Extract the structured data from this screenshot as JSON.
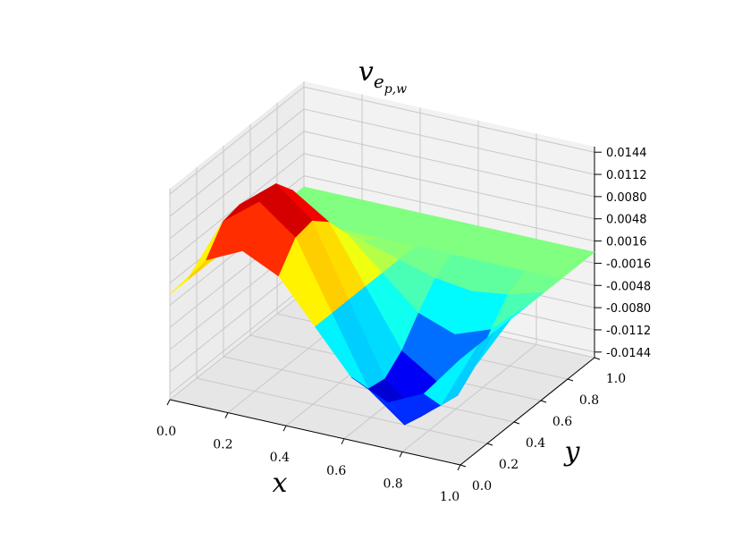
{
  "chart_data": {
    "type": "surface3d",
    "title": {
      "base": "v",
      "sub": "e",
      "subsub": "p,w"
    },
    "x_label": "x",
    "y_label": "y",
    "colormap": "jet",
    "x": [
      0,
      0.125,
      0.25,
      0.375,
      0.5,
      0.625,
      0.75,
      0.875,
      1
    ],
    "y": [
      0,
      0.125,
      0.25,
      0.375,
      0.5,
      0.625,
      0.75,
      0.875,
      1
    ],
    "z": [
      [
        0,
        0.0061,
        0.0086,
        0.0061,
        0,
        -0.0061,
        -0.0086,
        -0.0061,
        0
      ],
      [
        0,
        0.0097,
        0.0137,
        0.0097,
        0,
        -0.0097,
        -0.0137,
        -0.0097,
        0
      ],
      [
        0,
        0.0102,
        0.0144,
        0.0102,
        0,
        -0.0102,
        -0.0144,
        -0.0102,
        0
      ],
      [
        0,
        0.0081,
        0.0115,
        0.0081,
        0,
        -0.0081,
        -0.0115,
        -0.0081,
        0
      ],
      [
        0,
        0.0046,
        0.0065,
        0.0046,
        0,
        -0.0046,
        -0.0065,
        -0.0046,
        0
      ],
      [
        0,
        0.0015,
        0.0022,
        0.0015,
        0,
        -0.0015,
        -0.0022,
        -0.0015,
        0
      ],
      [
        0,
        0,
        0,
        0,
        0,
        0,
        0,
        0,
        0
      ],
      [
        0,
        0,
        0,
        0,
        0,
        0,
        0,
        0,
        0
      ],
      [
        0,
        0,
        0,
        0,
        0,
        0,
        0,
        0,
        0
      ]
    ],
    "xlim": [
      0,
      1
    ],
    "ylim": [
      0,
      1
    ],
    "zlim": [
      -0.0152,
      0.0152
    ],
    "xticks": [
      {
        "value": 0,
        "label": "0.0"
      },
      {
        "value": 0.2,
        "label": "0.2"
      },
      {
        "value": 0.4,
        "label": "0.4"
      },
      {
        "value": 0.6,
        "label": "0.6"
      },
      {
        "value": 0.8,
        "label": "0.8"
      },
      {
        "value": 1,
        "label": "1.0"
      }
    ],
    "yticks": [
      {
        "value": 0,
        "label": "0.0"
      },
      {
        "value": 0.2,
        "label": "0.2"
      },
      {
        "value": 0.4,
        "label": "0.4"
      },
      {
        "value": 0.6,
        "label": "0.6"
      },
      {
        "value": 0.8,
        "label": "0.8"
      },
      {
        "value": 1,
        "label": "1.0"
      }
    ],
    "zticks": [
      0.0144,
      0.0112,
      {
        "value": 0.008,
        "label": "0.0080"
      },
      0.0048,
      0.0016,
      -0.0016,
      -0.0048,
      {
        "value": -0.008,
        "label": "-0.0080"
      },
      -0.0112,
      -0.0144
    ],
    "grid": true
  }
}
